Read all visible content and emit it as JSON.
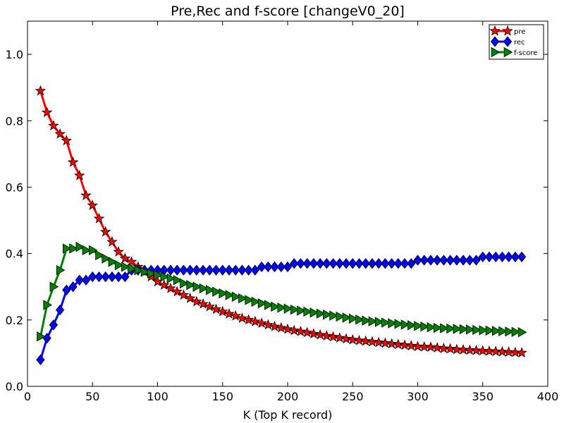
{
  "chart_data": {
    "type": "line",
    "title": "Pre,Rec and f-score [changeV0_20]",
    "xlabel": "K (Top K record)",
    "ylabel": "",
    "xlim": [
      0,
      400
    ],
    "ylim": [
      0,
      1.1
    ],
    "xticks": [
      "0",
      "50",
      "100",
      "150",
      "200",
      "250",
      "300",
      "350",
      "400"
    ],
    "yticks": [
      "0.0",
      "0.2",
      "0.4",
      "0.6",
      "0.8",
      "1.0"
    ],
    "grid": false,
    "legend_position": "top-right",
    "x": [
      10,
      15,
      20,
      25,
      30,
      35,
      40,
      45,
      50,
      55,
      60,
      65,
      70,
      75,
      80,
      85,
      90,
      95,
      100,
      105,
      110,
      115,
      120,
      125,
      130,
      135,
      140,
      145,
      150,
      155,
      160,
      165,
      170,
      175,
      180,
      185,
      190,
      195,
      200,
      205,
      210,
      215,
      220,
      225,
      230,
      235,
      240,
      245,
      250,
      255,
      260,
      265,
      270,
      275,
      280,
      285,
      290,
      295,
      300,
      305,
      310,
      315,
      320,
      325,
      330,
      335,
      340,
      345,
      350,
      355,
      360,
      365,
      370,
      375,
      380
    ],
    "series": [
      {
        "name": "pre",
        "color": "#ff0000",
        "marker": "star",
        "values": [
          0.89,
          0.825,
          0.785,
          0.76,
          0.74,
          0.675,
          0.635,
          0.575,
          0.545,
          0.505,
          0.465,
          0.435,
          0.405,
          0.385,
          0.375,
          0.36,
          0.345,
          0.33,
          0.315,
          0.305,
          0.295,
          0.285,
          0.275,
          0.265,
          0.255,
          0.248,
          0.24,
          0.232,
          0.225,
          0.218,
          0.212,
          0.205,
          0.2,
          0.195,
          0.19,
          0.185,
          0.18,
          0.176,
          0.172,
          0.168,
          0.165,
          0.162,
          0.158,
          0.155,
          0.152,
          0.149,
          0.146,
          0.143,
          0.14,
          0.138,
          0.136,
          0.134,
          0.132,
          0.13,
          0.128,
          0.126,
          0.124,
          0.122,
          0.12,
          0.119,
          0.118,
          0.116,
          0.114,
          0.113,
          0.111,
          0.11,
          0.109,
          0.108,
          0.107,
          0.106,
          0.105,
          0.104,
          0.103,
          0.102,
          0.101
        ]
      },
      {
        "name": "rec",
        "color": "#0000ff",
        "marker": "diamond",
        "values": [
          0.08,
          0.145,
          0.185,
          0.23,
          0.29,
          0.3,
          0.32,
          0.32,
          0.33,
          0.33,
          0.33,
          0.33,
          0.33,
          0.33,
          0.35,
          0.35,
          0.35,
          0.35,
          0.35,
          0.35,
          0.35,
          0.35,
          0.35,
          0.35,
          0.35,
          0.35,
          0.35,
          0.35,
          0.35,
          0.35,
          0.35,
          0.35,
          0.35,
          0.35,
          0.36,
          0.36,
          0.36,
          0.36,
          0.36,
          0.37,
          0.37,
          0.37,
          0.37,
          0.37,
          0.37,
          0.37,
          0.37,
          0.37,
          0.37,
          0.37,
          0.37,
          0.37,
          0.37,
          0.37,
          0.37,
          0.37,
          0.37,
          0.37,
          0.38,
          0.38,
          0.38,
          0.38,
          0.38,
          0.38,
          0.38,
          0.38,
          0.38,
          0.38,
          0.39,
          0.39,
          0.39,
          0.39,
          0.39,
          0.39,
          0.39
        ]
      },
      {
        "name": "f-score",
        "color": "#008000",
        "marker": "triangle-right",
        "values": [
          0.15,
          0.245,
          0.3,
          0.35,
          0.415,
          0.415,
          0.42,
          0.41,
          0.41,
          0.395,
          0.385,
          0.375,
          0.365,
          0.36,
          0.355,
          0.35,
          0.345,
          0.34,
          0.335,
          0.33,
          0.325,
          0.32,
          0.31,
          0.305,
          0.3,
          0.295,
          0.29,
          0.285,
          0.28,
          0.275,
          0.27,
          0.265,
          0.26,
          0.255,
          0.25,
          0.245,
          0.24,
          0.237,
          0.234,
          0.231,
          0.228,
          0.225,
          0.222,
          0.219,
          0.216,
          0.213,
          0.21,
          0.207,
          0.204,
          0.201,
          0.198,
          0.196,
          0.194,
          0.192,
          0.19,
          0.188,
          0.186,
          0.184,
          0.182,
          0.18,
          0.178,
          0.176,
          0.175,
          0.174,
          0.173,
          0.172,
          0.171,
          0.17,
          0.169,
          0.168,
          0.167,
          0.166,
          0.165,
          0.164,
          0.163
        ]
      }
    ]
  }
}
